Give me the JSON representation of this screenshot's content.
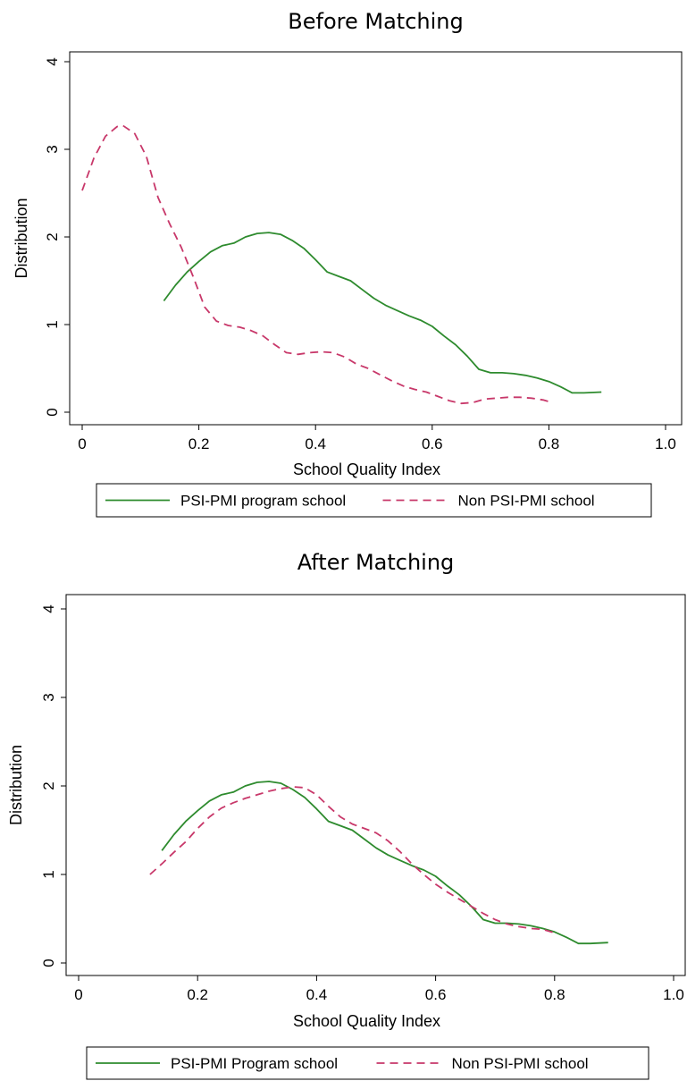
{
  "chart_data": [
    {
      "type": "line",
      "title": "Before Matching",
      "xlabel": "School Quality Index",
      "ylabel": "Distribution",
      "xlim": [
        0,
        1.0
      ],
      "ylim": [
        0,
        4
      ],
      "x_ticks": [
        "0",
        "0.2",
        "0.4",
        "0.6",
        "0.8",
        "1.0"
      ],
      "y_ticks": [
        "0",
        "1",
        "2",
        "3",
        "4"
      ],
      "grid": false,
      "legend_position": "bottom",
      "series": [
        {
          "name": "PSI-PMI program school",
          "color": "#2e8b2e",
          "style": "solid",
          "points": [
            [
              0.14,
              1.27
            ],
            [
              0.16,
              1.45
            ],
            [
              0.18,
              1.6
            ],
            [
              0.2,
              1.72
            ],
            [
              0.22,
              1.83
            ],
            [
              0.24,
              1.9
            ],
            [
              0.26,
              1.93
            ],
            [
              0.28,
              2.0
            ],
            [
              0.3,
              2.04
            ],
            [
              0.32,
              2.05
            ],
            [
              0.34,
              2.03
            ],
            [
              0.36,
              1.96
            ],
            [
              0.38,
              1.87
            ],
            [
              0.4,
              1.74
            ],
            [
              0.42,
              1.6
            ],
            [
              0.44,
              1.55
            ],
            [
              0.46,
              1.5
            ],
            [
              0.48,
              1.4
            ],
            [
              0.5,
              1.3
            ],
            [
              0.52,
              1.22
            ],
            [
              0.54,
              1.16
            ],
            [
              0.56,
              1.1
            ],
            [
              0.58,
              1.05
            ],
            [
              0.6,
              0.98
            ],
            [
              0.62,
              0.87
            ],
            [
              0.64,
              0.77
            ],
            [
              0.66,
              0.64
            ],
            [
              0.68,
              0.49
            ],
            [
              0.7,
              0.45
            ],
            [
              0.72,
              0.45
            ],
            [
              0.74,
              0.44
            ],
            [
              0.76,
              0.42
            ],
            [
              0.78,
              0.39
            ],
            [
              0.8,
              0.35
            ],
            [
              0.82,
              0.29
            ],
            [
              0.84,
              0.22
            ],
            [
              0.86,
              0.22
            ],
            [
              0.89,
              0.23
            ]
          ]
        },
        {
          "name": "Non PSI-PMI school",
          "color": "#c8386a",
          "style": "dashed",
          "points": [
            [
              0.0,
              2.53
            ],
            [
              0.02,
              2.9
            ],
            [
              0.04,
              3.15
            ],
            [
              0.06,
              3.26
            ],
            [
              0.07,
              3.27
            ],
            [
              0.09,
              3.18
            ],
            [
              0.11,
              2.92
            ],
            [
              0.13,
              2.45
            ],
            [
              0.15,
              2.15
            ],
            [
              0.17,
              1.88
            ],
            [
              0.19,
              1.55
            ],
            [
              0.21,
              1.2
            ],
            [
              0.23,
              1.04
            ],
            [
              0.25,
              0.99
            ],
            [
              0.27,
              0.97
            ],
            [
              0.29,
              0.93
            ],
            [
              0.31,
              0.87
            ],
            [
              0.33,
              0.77
            ],
            [
              0.35,
              0.68
            ],
            [
              0.37,
              0.66
            ],
            [
              0.39,
              0.68
            ],
            [
              0.41,
              0.69
            ],
            [
              0.43,
              0.68
            ],
            [
              0.45,
              0.63
            ],
            [
              0.47,
              0.55
            ],
            [
              0.49,
              0.5
            ],
            [
              0.51,
              0.43
            ],
            [
              0.53,
              0.36
            ],
            [
              0.55,
              0.3
            ],
            [
              0.57,
              0.26
            ],
            [
              0.59,
              0.23
            ],
            [
              0.61,
              0.18
            ],
            [
              0.63,
              0.13
            ],
            [
              0.65,
              0.1
            ],
            [
              0.67,
              0.11
            ],
            [
              0.69,
              0.15
            ],
            [
              0.71,
              0.16
            ],
            [
              0.73,
              0.17
            ],
            [
              0.75,
              0.17
            ],
            [
              0.77,
              0.16
            ],
            [
              0.79,
              0.14
            ],
            [
              0.8,
              0.12
            ]
          ]
        }
      ]
    },
    {
      "type": "line",
      "title": "After Matching",
      "xlabel": "School Quality Index",
      "ylabel": "Distribution",
      "xlim": [
        0,
        1.0
      ],
      "ylim": [
        0,
        4
      ],
      "x_ticks": [
        "0",
        "0.2",
        "0.4",
        "0.6",
        "0.8",
        "1.0"
      ],
      "y_ticks": [
        "0",
        "1",
        "2",
        "3",
        "4"
      ],
      "grid": false,
      "legend_position": "bottom",
      "series": [
        {
          "name": "PSI-PMI Program school",
          "color": "#2e8b2e",
          "style": "solid",
          "points": [
            [
              0.14,
              1.27
            ],
            [
              0.16,
              1.45
            ],
            [
              0.18,
              1.6
            ],
            [
              0.2,
              1.72
            ],
            [
              0.22,
              1.83
            ],
            [
              0.24,
              1.9
            ],
            [
              0.26,
              1.93
            ],
            [
              0.28,
              2.0
            ],
            [
              0.3,
              2.04
            ],
            [
              0.32,
              2.05
            ],
            [
              0.34,
              2.03
            ],
            [
              0.36,
              1.96
            ],
            [
              0.38,
              1.87
            ],
            [
              0.4,
              1.74
            ],
            [
              0.42,
              1.6
            ],
            [
              0.44,
              1.55
            ],
            [
              0.46,
              1.5
            ],
            [
              0.48,
              1.4
            ],
            [
              0.5,
              1.3
            ],
            [
              0.52,
              1.22
            ],
            [
              0.54,
              1.16
            ],
            [
              0.56,
              1.1
            ],
            [
              0.58,
              1.05
            ],
            [
              0.6,
              0.98
            ],
            [
              0.62,
              0.87
            ],
            [
              0.64,
              0.77
            ],
            [
              0.66,
              0.64
            ],
            [
              0.68,
              0.49
            ],
            [
              0.7,
              0.45
            ],
            [
              0.72,
              0.45
            ],
            [
              0.74,
              0.44
            ],
            [
              0.76,
              0.42
            ],
            [
              0.78,
              0.39
            ],
            [
              0.8,
              0.35
            ],
            [
              0.82,
              0.29
            ],
            [
              0.84,
              0.22
            ],
            [
              0.86,
              0.22
            ],
            [
              0.89,
              0.23
            ]
          ]
        },
        {
          "name": "Non PSI-PMI school",
          "color": "#c8386a",
          "style": "dashed",
          "points": [
            [
              0.12,
              1.0
            ],
            [
              0.14,
              1.12
            ],
            [
              0.16,
              1.25
            ],
            [
              0.18,
              1.37
            ],
            [
              0.2,
              1.52
            ],
            [
              0.22,
              1.65
            ],
            [
              0.24,
              1.75
            ],
            [
              0.26,
              1.81
            ],
            [
              0.28,
              1.86
            ],
            [
              0.3,
              1.9
            ],
            [
              0.32,
              1.94
            ],
            [
              0.34,
              1.97
            ],
            [
              0.36,
              1.99
            ],
            [
              0.38,
              1.98
            ],
            [
              0.4,
              1.9
            ],
            [
              0.42,
              1.77
            ],
            [
              0.44,
              1.65
            ],
            [
              0.46,
              1.57
            ],
            [
              0.48,
              1.52
            ],
            [
              0.5,
              1.47
            ],
            [
              0.52,
              1.38
            ],
            [
              0.54,
              1.26
            ],
            [
              0.56,
              1.12
            ],
            [
              0.58,
              1.0
            ],
            [
              0.6,
              0.89
            ],
            [
              0.62,
              0.8
            ],
            [
              0.64,
              0.72
            ],
            [
              0.66,
              0.64
            ],
            [
              0.68,
              0.56
            ],
            [
              0.7,
              0.49
            ],
            [
              0.72,
              0.44
            ],
            [
              0.74,
              0.41
            ],
            [
              0.76,
              0.39
            ],
            [
              0.78,
              0.38
            ],
            [
              0.8,
              0.34
            ]
          ]
        }
      ]
    }
  ]
}
